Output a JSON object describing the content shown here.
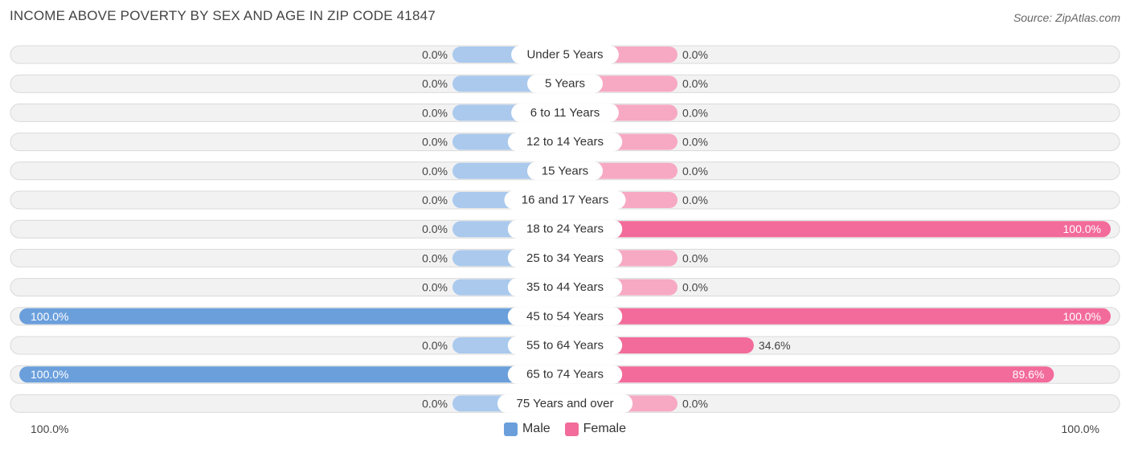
{
  "title": "INCOME ABOVE POVERTY BY SEX AND AGE IN ZIP CODE 41847",
  "source": "Source: ZipAtlas.com",
  "colors": {
    "male_full": "#6a9fdc",
    "male_light": "#aac9ed",
    "female_full": "#f26b9a",
    "female_light": "#f7a9c4",
    "row_bg": "#f2f2f2",
    "row_border": "#d9d9d9"
  },
  "legend": {
    "male": "Male",
    "female": "Female"
  },
  "axis": {
    "left": "100.0%",
    "right": "100.0%"
  },
  "chart_data": {
    "type": "bar",
    "orientation": "horizontal-diverging",
    "title": "INCOME ABOVE POVERTY BY SEX AND AGE IN ZIP CODE 41847",
    "xlim": [
      -100,
      100
    ],
    "categories": [
      "Under 5 Years",
      "5 Years",
      "6 to 11 Years",
      "12 to 14 Years",
      "15 Years",
      "16 and 17 Years",
      "18 to 24 Years",
      "25 to 34 Years",
      "35 to 44 Years",
      "45 to 54 Years",
      "55 to 64 Years",
      "65 to 74 Years",
      "75 Years and over"
    ],
    "series": [
      {
        "name": "Male",
        "values": [
          0.0,
          0.0,
          0.0,
          0.0,
          0.0,
          0.0,
          0.0,
          0.0,
          0.0,
          100.0,
          0.0,
          100.0,
          0.0
        ]
      },
      {
        "name": "Female",
        "values": [
          0.0,
          0.0,
          0.0,
          0.0,
          0.0,
          0.0,
          100.0,
          0.0,
          0.0,
          100.0,
          34.6,
          89.6,
          0.0
        ]
      }
    ],
    "value_labels": {
      "male": [
        "0.0%",
        "0.0%",
        "0.0%",
        "0.0%",
        "0.0%",
        "0.0%",
        "0.0%",
        "0.0%",
        "0.0%",
        "100.0%",
        "0.0%",
        "100.0%",
        "0.0%"
      ],
      "female": [
        "0.0%",
        "0.0%",
        "0.0%",
        "0.0%",
        "0.0%",
        "0.0%",
        "100.0%",
        "0.0%",
        "0.0%",
        "100.0%",
        "34.6%",
        "89.6%",
        "0.0%"
      ]
    },
    "legend_position": "bottom-center"
  }
}
